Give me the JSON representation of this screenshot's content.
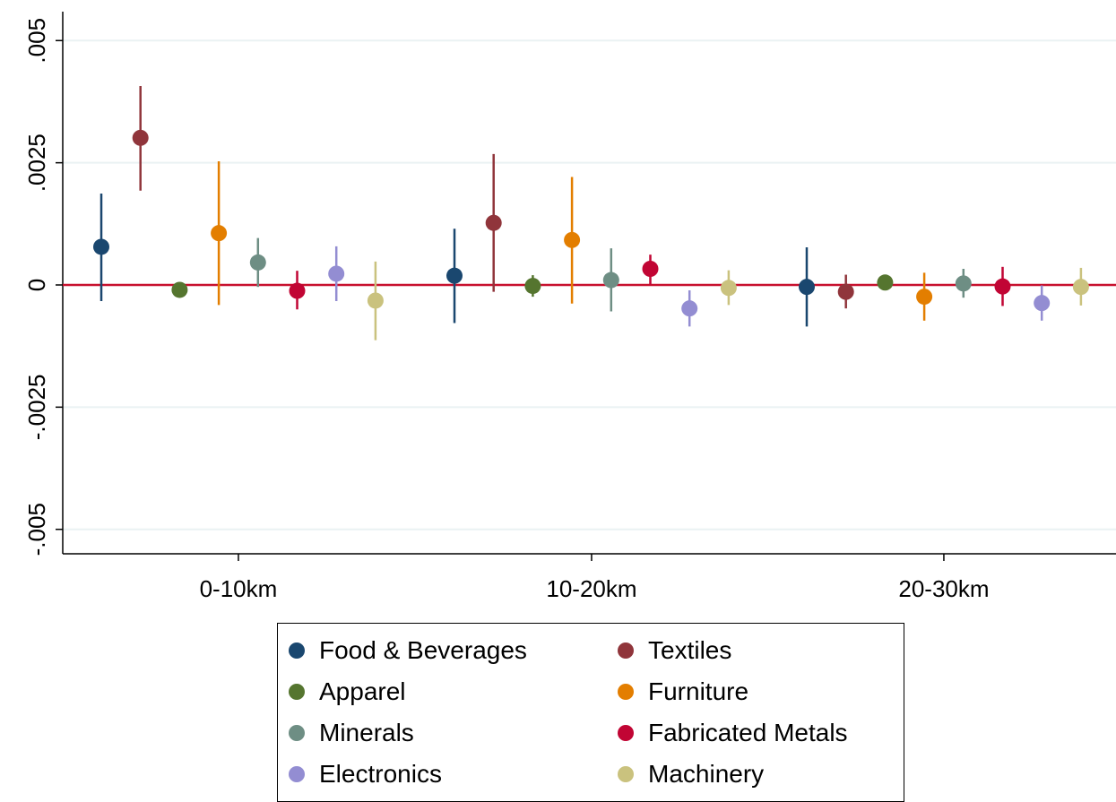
{
  "chart_data": {
    "type": "scatter",
    "subtype": "coefficient plot with confidence intervals",
    "title": "",
    "xlabel": "",
    "ylabel": "",
    "categories": [
      "0-10km",
      "10-20km",
      "20-30km"
    ],
    "ylim": [
      -0.0055,
      0.0055
    ],
    "yticks": [
      0.005,
      0.0025,
      0,
      -0.0025,
      -0.005
    ],
    "ytick_labels": [
      ".005",
      ".0025",
      "0",
      "-.0025",
      "-.005"
    ],
    "grid": true,
    "reference_line": {
      "y": 0,
      "color": "#c8102e"
    },
    "legend_position": "bottom",
    "legend_columns": 2,
    "series": [
      {
        "name": "Food & Beverages",
        "color": "#1a476f",
        "points": [
          {
            "est": 0.00078,
            "lo": -0.00033,
            "hi": 0.00187
          },
          {
            "est": 0.00019,
            "lo": -0.00078,
            "hi": 0.00115
          },
          {
            "est": -4e-05,
            "lo": -0.00085,
            "hi": 0.00077
          }
        ]
      },
      {
        "name": "Textiles",
        "color": "#90353b",
        "points": [
          {
            "est": 0.00301,
            "lo": 0.00193,
            "hi": 0.00407
          },
          {
            "est": 0.00127,
            "lo": -0.00014,
            "hi": 0.00268
          },
          {
            "est": -0.00014,
            "lo": -0.00048,
            "hi": 0.00021
          }
        ]
      },
      {
        "name": "Apparel",
        "color": "#55752f",
        "points": [
          {
            "est": -0.0001,
            "lo": -0.00022,
            "hi": 2e-05
          },
          {
            "est": -2e-05,
            "lo": -0.00024,
            "hi": 0.0002
          },
          {
            "est": 5e-05,
            "lo": -3e-05,
            "hi": 0.00013
          }
        ]
      },
      {
        "name": "Furniture",
        "color": "#e37e00",
        "points": [
          {
            "est": 0.00106,
            "lo": -0.00041,
            "hi": 0.00253
          },
          {
            "est": 0.00092,
            "lo": -0.00038,
            "hi": 0.00221
          },
          {
            "est": -0.00024,
            "lo": -0.00073,
            "hi": 0.00025
          }
        ]
      },
      {
        "name": "Minerals",
        "color": "#6e8e84",
        "points": [
          {
            "est": 0.00046,
            "lo": -4e-05,
            "hi": 0.00096
          },
          {
            "est": 0.0001,
            "lo": -0.00054,
            "hi": 0.00075
          },
          {
            "est": 3e-05,
            "lo": -0.00026,
            "hi": 0.00033
          }
        ]
      },
      {
        "name": "Fabricated Metals",
        "color": "#c10534",
        "points": [
          {
            "est": -0.00012,
            "lo": -0.0005,
            "hi": 0.00029
          },
          {
            "est": 0.00033,
            "lo": 1e-05,
            "hi": 0.00062
          },
          {
            "est": -3e-05,
            "lo": -0.00043,
            "hi": 0.00037
          }
        ]
      },
      {
        "name": "Electronics",
        "color": "#938dd2",
        "points": [
          {
            "est": 0.00023,
            "lo": -0.00033,
            "hi": 0.00079
          },
          {
            "est": -0.00048,
            "lo": -0.00085,
            "hi": -0.00011
          },
          {
            "est": -0.00037,
            "lo": -0.00073,
            "hi": -1e-05
          }
        ]
      },
      {
        "name": "Machinery",
        "color": "#cac27e",
        "points": [
          {
            "est": -0.00032,
            "lo": -0.00113,
            "hi": 0.00048
          },
          {
            "est": -6e-05,
            "lo": -0.00041,
            "hi": 0.0003
          },
          {
            "est": -4e-05,
            "lo": -0.00042,
            "hi": 0.00035
          }
        ]
      }
    ]
  }
}
